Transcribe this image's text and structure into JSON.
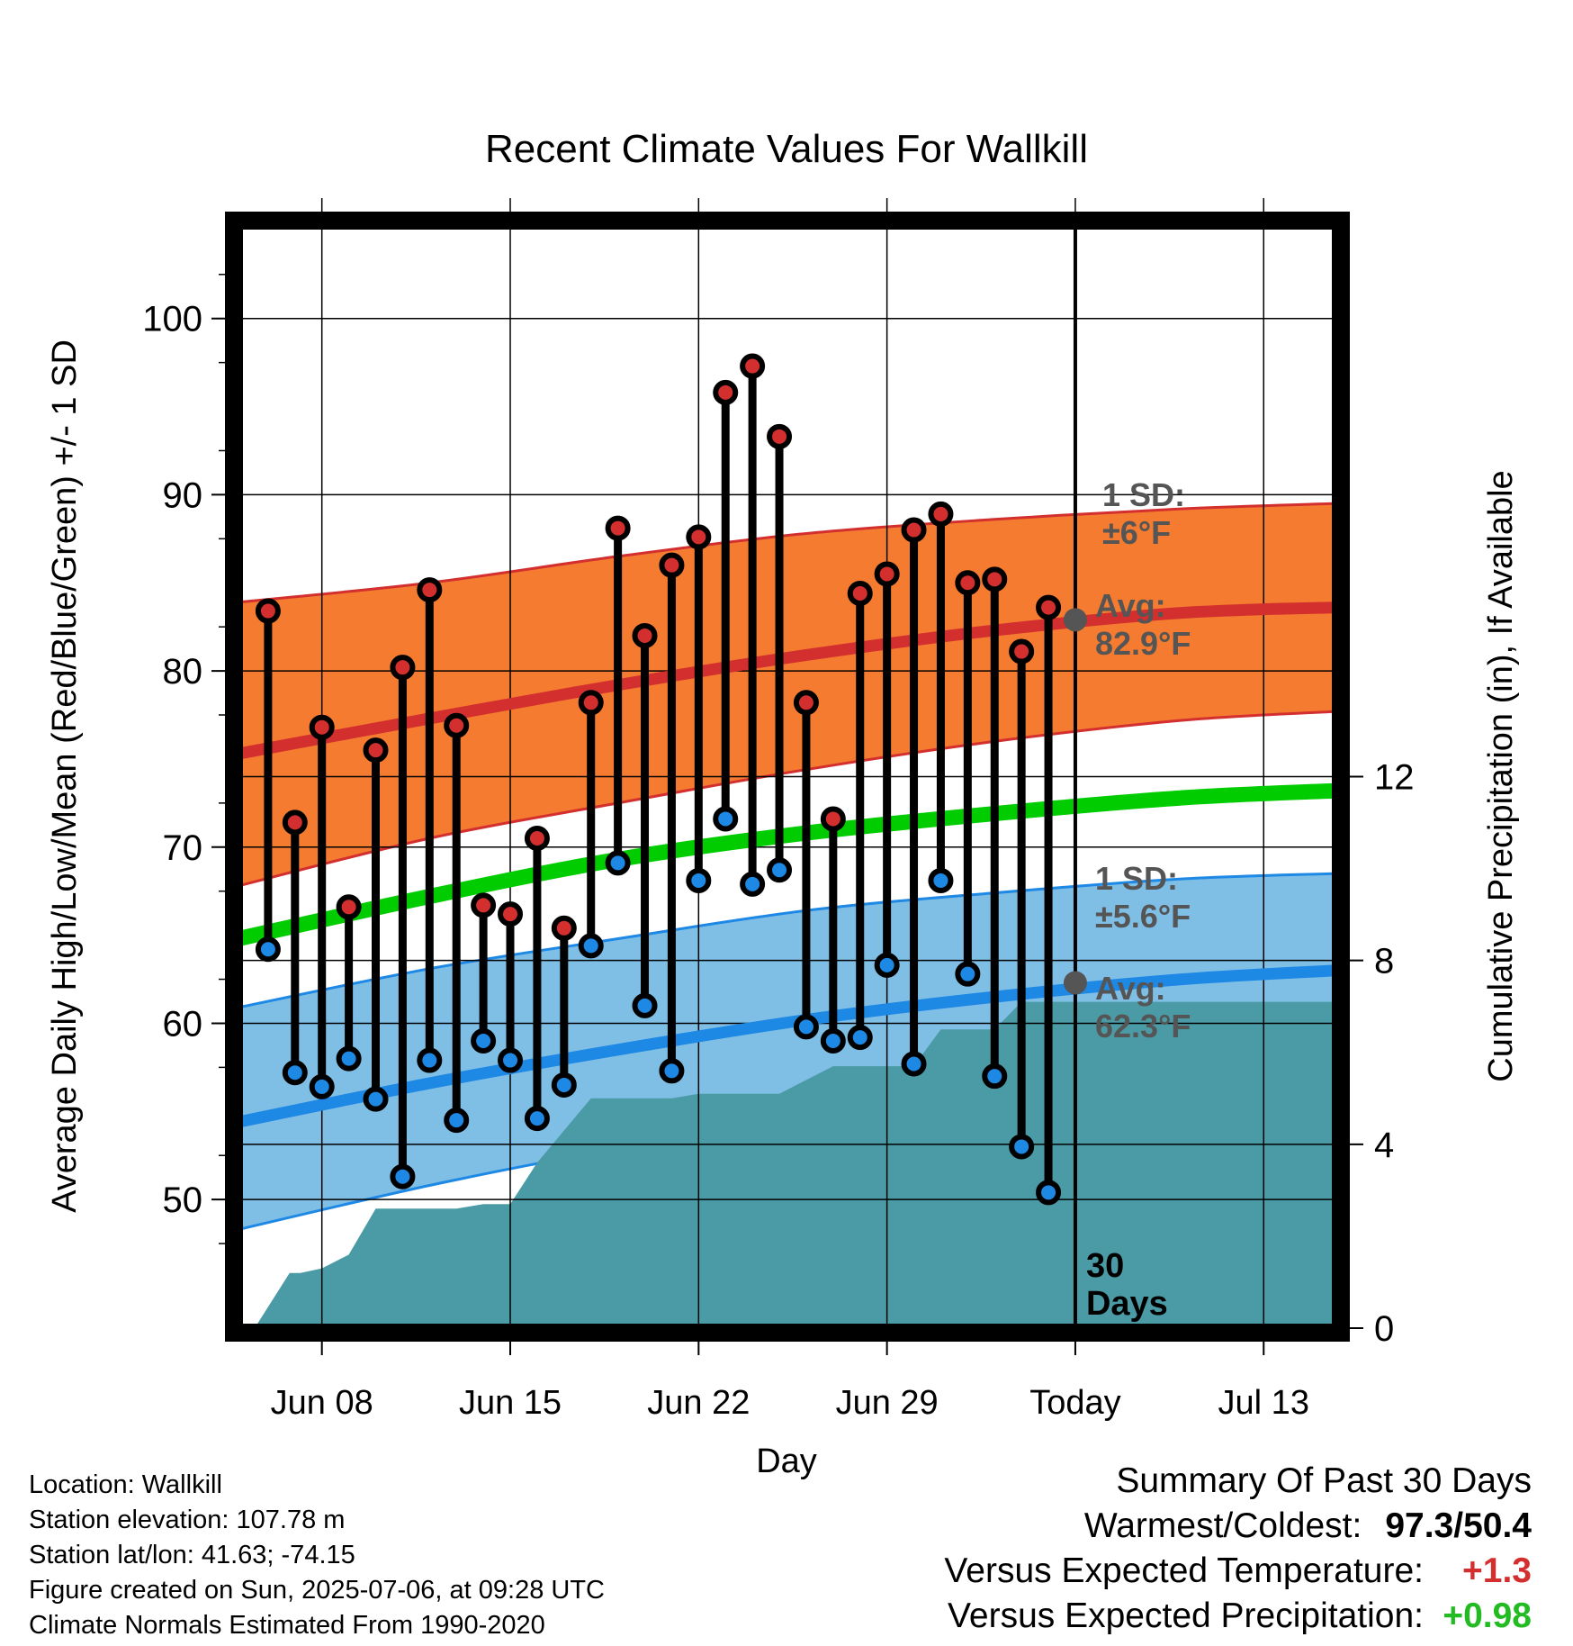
{
  "chart_data": {
    "type": "line",
    "title": "Recent Climate Values For Wallkill",
    "xlabel": "Day",
    "ylabel": "Average Daily High/Low/Mean (Red/Blue/Green) +/- 1 SD",
    "y2label": "Cumulative Precipitation (in), If Available",
    "x_ticks": [
      "Jun 08",
      "Jun 15",
      "Jun 22",
      "Jun 29",
      "Today",
      "Jul 13"
    ],
    "x_tick_days": [
      8,
      15,
      22,
      29,
      36,
      43
    ],
    "xlim": [
      4.9,
      45.7
    ],
    "y_ticks": [
      50,
      60,
      70,
      80,
      90,
      100
    ],
    "ylim": [
      42.7,
      105.3
    ],
    "y2_ticks": [
      0,
      4,
      8,
      12
    ],
    "y2lim": [
      0,
      24
    ],
    "grid": true,
    "today_day": 36,
    "days": [
      6,
      7,
      8,
      9,
      10,
      11,
      12,
      13,
      14,
      15,
      16,
      17,
      18,
      19,
      20,
      21,
      22,
      23,
      24,
      25,
      26,
      27,
      28,
      29,
      30,
      31,
      32,
      33,
      34,
      35
    ],
    "series": [
      {
        "name": "High",
        "color": "#d32f2f",
        "values": [
          83.4,
          71.4,
          76.8,
          66.6,
          75.5,
          80.2,
          84.6,
          76.9,
          66.7,
          66.2,
          70.5,
          65.4,
          78.2,
          88.1,
          82.0,
          86.0,
          87.6,
          95.8,
          97.3,
          93.3,
          78.2,
          71.6,
          84.4,
          85.5,
          88.0,
          88.9,
          85.0,
          85.2,
          81.1,
          83.6
        ]
      },
      {
        "name": "Low",
        "color": "#1e88e5",
        "values": [
          64.2,
          57.2,
          56.4,
          58.0,
          55.7,
          51.3,
          57.9,
          54.5,
          59.0,
          57.9,
          54.6,
          56.5,
          64.4,
          69.1,
          61.0,
          57.3,
          68.1,
          71.6,
          67.9,
          68.7,
          59.8,
          59.0,
          59.2,
          63.3,
          57.7,
          68.1,
          62.8,
          57.0,
          53.0,
          50.4
        ]
      },
      {
        "name": "Avg High",
        "color": "#d32f2f",
        "x": [
          4.9,
          12,
          19,
          26,
          33,
          40,
          45.7
        ],
        "values": [
          75.3,
          77.3,
          79.2,
          80.9,
          82.3,
          83.3,
          83.6
        ]
      },
      {
        "name": "Mean",
        "color": "#00cc00",
        "x": [
          4.9,
          12,
          19,
          26,
          33,
          40,
          45.7
        ],
        "values": [
          64.8,
          67.2,
          69.3,
          70.8,
          71.9,
          72.8,
          73.2
        ]
      },
      {
        "name": "Avg Low",
        "color": "#1e88e5",
        "x": [
          4.9,
          12,
          19,
          26,
          33,
          40,
          45.7
        ],
        "values": [
          54.4,
          56.6,
          58.5,
          60.2,
          61.5,
          62.5,
          63.0
        ]
      },
      {
        "name": "Precipitation",
        "color": "#4a9ba5",
        "x": [
          5.5,
          6.8,
          7.2,
          8.0,
          9.0,
          10.0,
          11.0,
          12.0,
          13.0,
          14.0,
          15.0,
          16.0,
          17.0,
          18.0,
          19.0,
          20.0,
          21.0,
          22.0,
          23.0,
          24.0,
          25.0,
          26.0,
          27.0,
          28.0,
          29.0,
          30.0,
          31.0,
          32.0,
          33.0,
          34.0,
          45.7
        ],
        "values": [
          0,
          1.2,
          1.2,
          1.3,
          1.6,
          2.6,
          2.6,
          2.6,
          2.6,
          2.7,
          2.7,
          3.6,
          4.3,
          5.0,
          5.0,
          5.0,
          5.0,
          5.1,
          5.1,
          5.1,
          5.1,
          5.4,
          5.7,
          5.7,
          5.7,
          5.7,
          6.5,
          6.5,
          6.5,
          7.1,
          7.1
        ]
      }
    ],
    "bands": [
      {
        "name": "High 1 SD",
        "color": "#f47b30",
        "x": [
          4.9,
          12,
          19,
          26,
          33,
          40,
          45.7
        ],
        "upper": [
          83.9,
          85.0,
          86.5,
          87.8,
          88.6,
          89.2,
          89.5
        ],
        "lower": [
          67.8,
          70.5,
          72.5,
          74.4,
          76.0,
          77.2,
          77.7
        ]
      },
      {
        "name": "Low 1 SD",
        "color": "#7fbfe6",
        "x": [
          4.9,
          12,
          19,
          26,
          33,
          40,
          45.7
        ],
        "upper": [
          60.9,
          63.1,
          64.8,
          66.4,
          67.4,
          68.2,
          68.5
        ],
        "lower": [
          48.3,
          50.8,
          52.9,
          54.7,
          56.4,
          57.4,
          57.8
        ]
      }
    ],
    "annotations": {
      "high_sd": [
        "1 SD:",
        "±6°F"
      ],
      "high_avg": [
        "Avg:",
        "82.9°F"
      ],
      "low_sd": [
        "1 SD:",
        "±5.6°F"
      ],
      "low_avg": [
        "Avg:",
        "62.3°F"
      ],
      "days_label": [
        "30",
        "Days"
      ]
    },
    "today_avg_high": 82.9,
    "today_avg_low": 62.3
  },
  "footer": {
    "location": "Location: Wallkill",
    "elevation": "Station elevation: 107.78 m",
    "latlon": "Station lat/lon: 41.63; -74.15",
    "created": "Figure created on Sun, 2025-07-06, at 09:28 UTC",
    "normals": "Climate Normals Estimated From 1990-2020"
  },
  "summary": {
    "title": "Summary Of Past 30 Days",
    "warmest_label": "Warmest/Coldest:",
    "warmest_value": "97.3/50.4",
    "temp_label": "Versus Expected Temperature:",
    "temp_value": "+1.3",
    "temp_color": "#d32f2f",
    "precip_label": "Versus Expected Precipitation:",
    "precip_value": "+0.98",
    "precip_color": "#22bb22"
  }
}
